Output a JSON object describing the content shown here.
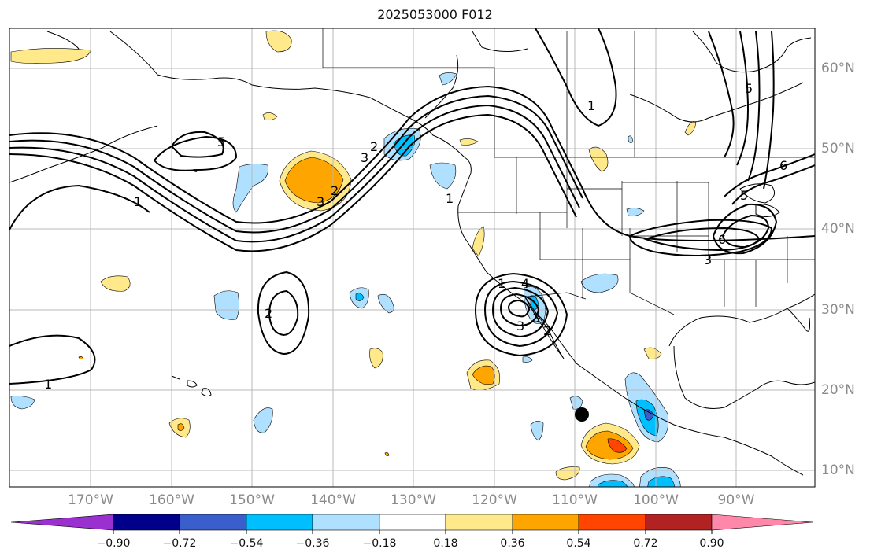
{
  "title": "2025053000 F012",
  "longitude_labels": [
    "170°W",
    "160°W",
    "150°W",
    "140°W",
    "130°W",
    "120°W",
    "110°W",
    "100°W",
    "90°W"
  ],
  "latitude_labels": [
    "60°N",
    "50°N",
    "40°N",
    "30°N",
    "20°N",
    "10°N"
  ],
  "contour_labels": [
    "1",
    "5",
    "2",
    "3",
    "2",
    "1",
    "3",
    "2",
    "1",
    "6",
    "3",
    "5",
    "3",
    "1",
    "6",
    "5",
    "3",
    "4",
    "2",
    "1"
  ],
  "colorbar": {
    "tick_labels": [
      "−0.90",
      "−0.72",
      "−0.54",
      "−0.36",
      "−0.18",
      "0.18",
      "0.36",
      "0.54",
      "0.72",
      "0.90"
    ],
    "colors": [
      "#9b30d0",
      "#00008b",
      "#3a5fcd",
      "#00bfff",
      "#b0e0ff",
      "#ffffff",
      "#ffe98a",
      "#ffa500",
      "#ff4500",
      "#b22222",
      "#ff88aa"
    ]
  },
  "map_extent": {
    "lon_min": -180,
    "lon_max": -80,
    "lat_min": 8,
    "lat_max": 65
  },
  "marker": {
    "type": "filled-circle",
    "lon": -108.5,
    "lat": 17
  }
}
